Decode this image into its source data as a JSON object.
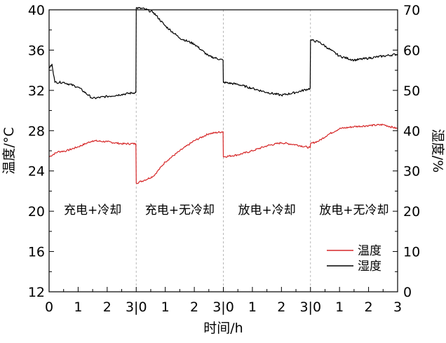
{
  "chart_data": {
    "type": "line",
    "xlabel": "时间/h",
    "ylabel_left": "温度/°C",
    "ylabel_right": "湿度/%",
    "ylim_left": [
      12,
      40
    ],
    "ylim_right": [
      0,
      70
    ],
    "yticks_left": [
      "12",
      "16",
      "20",
      "24",
      "28",
      "32",
      "36",
      "40"
    ],
    "yticks_right": [
      "0",
      "10",
      "20",
      "30",
      "40",
      "50",
      "60",
      "70"
    ],
    "x_range": [
      0,
      12
    ],
    "xticks": [
      {
        "x": 0,
        "label": "0"
      },
      {
        "x": 1,
        "label": "1"
      },
      {
        "x": 2,
        "label": "2"
      },
      {
        "x": 3,
        "label": "3|0"
      },
      {
        "x": 4,
        "label": "1"
      },
      {
        "x": 5,
        "label": "2"
      },
      {
        "x": 6,
        "label": "3|0"
      },
      {
        "x": 7,
        "label": "1"
      },
      {
        "x": 8,
        "label": "2"
      },
      {
        "x": 9,
        "label": "3|0"
      },
      {
        "x": 10,
        "label": "1"
      },
      {
        "x": 11,
        "label": "2"
      },
      {
        "x": 12,
        "label": "3"
      }
    ],
    "phase_boundaries": [
      3,
      6,
      9
    ],
    "phases": [
      "充电+冷却",
      "充电+无冷却",
      "放电+冷却",
      "放电+无冷却"
    ],
    "legend_position": "bottom-right",
    "series": [
      {
        "name": "温度",
        "axis": "left",
        "color": "#d62728",
        "points": [
          [
            0,
            25.4
          ],
          [
            0.3,
            25.9
          ],
          [
            0.6,
            26.0
          ],
          [
            1.0,
            26.4
          ],
          [
            1.5,
            27.0
          ],
          [
            2.0,
            26.9
          ],
          [
            2.5,
            26.7
          ],
          [
            2.99,
            26.7
          ],
          [
            3.0,
            22.8
          ],
          [
            3.3,
            23.1
          ],
          [
            3.6,
            23.5
          ],
          [
            4.0,
            24.9
          ],
          [
            4.5,
            26.0
          ],
          [
            5.0,
            27.0
          ],
          [
            5.5,
            27.7
          ],
          [
            5.99,
            27.9
          ],
          [
            6.0,
            25.4
          ],
          [
            6.5,
            25.6
          ],
          [
            7.0,
            26.0
          ],
          [
            7.5,
            26.5
          ],
          [
            8.0,
            26.8
          ],
          [
            8.5,
            26.6
          ],
          [
            8.99,
            26.3
          ],
          [
            9.0,
            26.7
          ],
          [
            9.3,
            27.0
          ],
          [
            9.6,
            27.6
          ],
          [
            10.0,
            28.2
          ],
          [
            10.5,
            28.4
          ],
          [
            11.0,
            28.5
          ],
          [
            11.5,
            28.6
          ],
          [
            12.0,
            28.2
          ]
        ]
      },
      {
        "name": "湿度",
        "axis": "right",
        "color": "#000000",
        "points": [
          [
            0,
            55.5
          ],
          [
            0.1,
            56.5
          ],
          [
            0.2,
            52.0
          ],
          [
            0.5,
            52.0
          ],
          [
            1.0,
            50.8
          ],
          [
            1.5,
            48.0
          ],
          [
            2.0,
            48.5
          ],
          [
            2.5,
            49.0
          ],
          [
            2.99,
            49.5
          ],
          [
            3.0,
            70.5
          ],
          [
            3.3,
            70.2
          ],
          [
            3.6,
            69.3
          ],
          [
            4.0,
            66.0
          ],
          [
            4.5,
            63.0
          ],
          [
            5.0,
            61.5
          ],
          [
            5.5,
            58.5
          ],
          [
            5.99,
            57.5
          ],
          [
            6.0,
            52.0
          ],
          [
            6.5,
            51.5
          ],
          [
            7.0,
            50.5
          ],
          [
            7.5,
            49.5
          ],
          [
            8.0,
            48.8
          ],
          [
            8.5,
            49.5
          ],
          [
            8.99,
            50.5
          ],
          [
            9.0,
            62.5
          ],
          [
            9.3,
            62.0
          ],
          [
            9.6,
            60.5
          ],
          [
            10.0,
            58.5
          ],
          [
            10.5,
            57.5
          ],
          [
            11.0,
            58.0
          ],
          [
            11.5,
            58.5
          ],
          [
            12.0,
            59.0
          ]
        ]
      }
    ]
  }
}
